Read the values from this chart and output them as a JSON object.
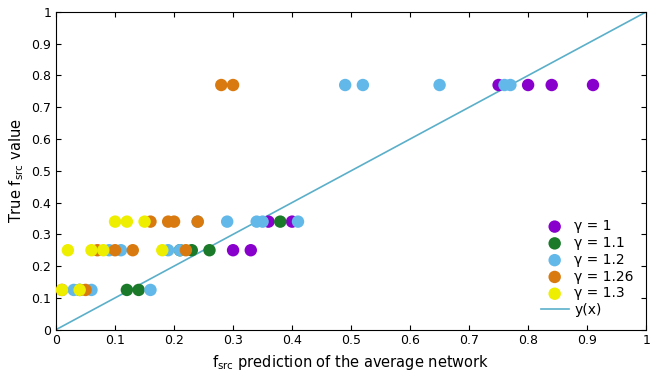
{
  "title": "",
  "xlabel": "f_{src} prediction of the average network",
  "ylabel": "True f_{src} value",
  "xlim": [
    0,
    1
  ],
  "ylim": [
    0,
    1
  ],
  "xticks": [
    0,
    0.1,
    0.2,
    0.3,
    0.4,
    0.5,
    0.6,
    0.7,
    0.8,
    0.9,
    1.0
  ],
  "yticks": [
    0,
    0.1,
    0.2,
    0.3,
    0.4,
    0.5,
    0.6,
    0.7,
    0.8,
    0.9,
    1.0
  ],
  "line_color": "#5bafc9",
  "series": [
    {
      "label": "γ = 1",
      "color": "#8800cc",
      "x": [
        0.3,
        0.33,
        0.36,
        0.4,
        0.75,
        0.8,
        0.84,
        0.91
      ],
      "y": [
        0.25,
        0.25,
        0.34,
        0.34,
        0.77,
        0.77,
        0.77,
        0.77
      ]
    },
    {
      "label": "γ = 1.1",
      "color": "#1a7a2a",
      "x": [
        0.04,
        0.12,
        0.14,
        0.21,
        0.23,
        0.26,
        0.38
      ],
      "y": [
        0.125,
        0.125,
        0.125,
        0.25,
        0.25,
        0.25,
        0.34
      ]
    },
    {
      "label": "γ = 1.2",
      "color": "#62b8e8",
      "x": [
        0.03,
        0.06,
        0.09,
        0.11,
        0.16,
        0.19,
        0.21,
        0.24,
        0.29,
        0.34,
        0.35,
        0.41,
        0.49,
        0.52,
        0.65,
        0.76,
        0.77
      ],
      "y": [
        0.125,
        0.125,
        0.25,
        0.25,
        0.125,
        0.25,
        0.25,
        0.34,
        0.34,
        0.34,
        0.34,
        0.34,
        0.77,
        0.77,
        0.77,
        0.77,
        0.77
      ]
    },
    {
      "label": "γ = 1.26",
      "color": "#d97a10",
      "x": [
        0.01,
        0.05,
        0.07,
        0.1,
        0.13,
        0.16,
        0.19,
        0.2,
        0.22,
        0.24,
        0.28,
        0.3
      ],
      "y": [
        0.125,
        0.125,
        0.25,
        0.25,
        0.25,
        0.34,
        0.34,
        0.34,
        0.25,
        0.34,
        0.77,
        0.77
      ]
    },
    {
      "label": "γ = 1.3",
      "color": "#eeee00",
      "x": [
        0.01,
        0.02,
        0.04,
        0.06,
        0.08,
        0.1,
        0.12,
        0.15,
        0.18
      ],
      "y": [
        0.125,
        0.25,
        0.125,
        0.25,
        0.25,
        0.34,
        0.34,
        0.34,
        0.25
      ]
    }
  ],
  "marker_size": 80,
  "legend_fontsize": 10,
  "tick_fontsize": 9,
  "axis_fontsize": 10.5
}
